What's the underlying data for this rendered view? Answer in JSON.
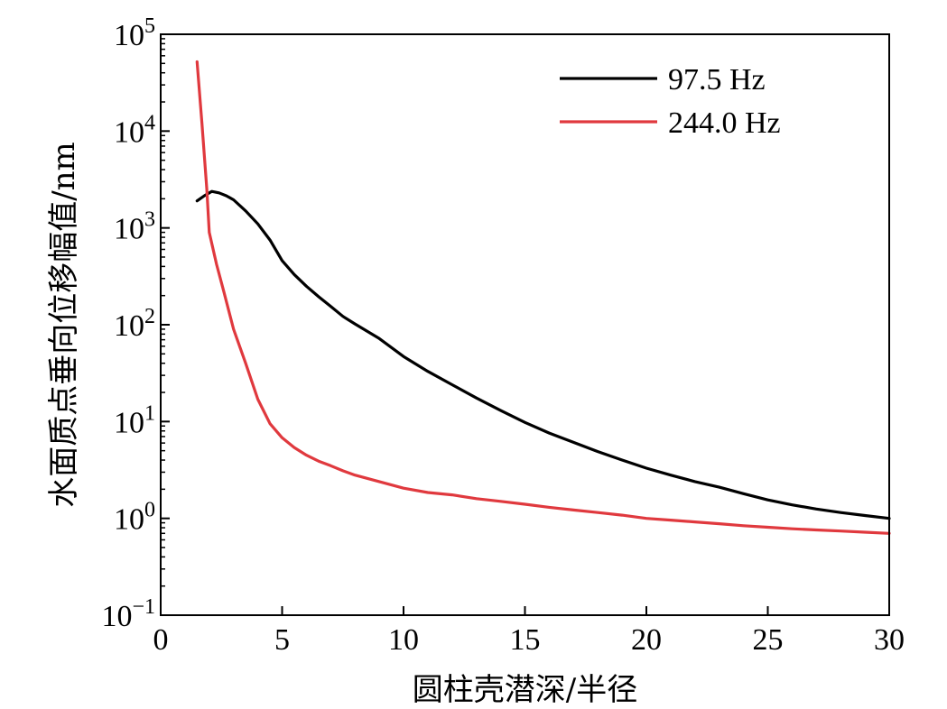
{
  "chart_data": {
    "type": "line",
    "title": "",
    "xlabel": "圆柱壳潜深/半径",
    "ylabel": "水面质点垂向位移幅值/nm",
    "xlim": [
      0,
      30
    ],
    "ylim": [
      0.1,
      100000
    ],
    "yscale": "log",
    "x_ticks": [
      0,
      5,
      10,
      15,
      20,
      25,
      30
    ],
    "x_tick_labels": [
      "0",
      "5",
      "10",
      "15",
      "20",
      "25",
      "30"
    ],
    "y_ticks": [
      {
        "base": "10",
        "exp": "5",
        "value": 100000
      },
      {
        "base": "10",
        "exp": "4",
        "value": 10000
      },
      {
        "base": "10",
        "exp": "3",
        "value": 1000
      },
      {
        "base": "10",
        "exp": "2",
        "value": 100
      },
      {
        "base": "10",
        "exp": "1",
        "value": 10
      },
      {
        "base": "10",
        "exp": "0",
        "value": 1
      },
      {
        "base": "10",
        "exp": "−1",
        "value": 0.1
      }
    ],
    "grid": false,
    "legend_position": "top-right",
    "series": [
      {
        "name": "97.5 Hz",
        "color": "#000000",
        "points": [
          [
            1.5,
            1900
          ],
          [
            1.8,
            2150
          ],
          [
            2.1,
            2380
          ],
          [
            2.4,
            2300
          ],
          [
            2.7,
            2150
          ],
          [
            3.0,
            1950
          ],
          [
            3.5,
            1500
          ],
          [
            4.0,
            1100
          ],
          [
            4.5,
            750
          ],
          [
            5.0,
            460
          ],
          [
            5.5,
            330
          ],
          [
            6.0,
            250
          ],
          [
            6.5,
            195
          ],
          [
            7.0,
            155
          ],
          [
            7.5,
            122
          ],
          [
            8.0,
            102
          ],
          [
            9.0,
            72
          ],
          [
            10.0,
            47
          ],
          [
            11.0,
            33
          ],
          [
            12.0,
            24
          ],
          [
            13.0,
            17.5
          ],
          [
            14.0,
            13
          ],
          [
            15.0,
            9.8
          ],
          [
            16.0,
            7.6
          ],
          [
            17.0,
            6.1
          ],
          [
            18.0,
            4.9
          ],
          [
            19.0,
            4.0
          ],
          [
            20.0,
            3.3
          ],
          [
            21.0,
            2.8
          ],
          [
            22.0,
            2.4
          ],
          [
            23.0,
            2.1
          ],
          [
            24.0,
            1.8
          ],
          [
            25.0,
            1.55
          ],
          [
            26.0,
            1.38
          ],
          [
            27.0,
            1.25
          ],
          [
            28.0,
            1.15
          ],
          [
            29.0,
            1.07
          ],
          [
            30.0,
            1.0
          ]
        ]
      },
      {
        "name": "244.0 Hz",
        "color": "#e0393e",
        "points": [
          [
            1.5,
            52000
          ],
          [
            1.7,
            12000
          ],
          [
            1.9,
            2500
          ],
          [
            2.0,
            900
          ],
          [
            2.3,
            420
          ],
          [
            2.6,
            220
          ],
          [
            3.0,
            90
          ],
          [
            3.5,
            40
          ],
          [
            4.0,
            17
          ],
          [
            4.5,
            9.5
          ],
          [
            5.0,
            6.8
          ],
          [
            5.5,
            5.4
          ],
          [
            6.0,
            4.5
          ],
          [
            6.5,
            3.9
          ],
          [
            7.0,
            3.5
          ],
          [
            7.5,
            3.1
          ],
          [
            8.0,
            2.8
          ],
          [
            9.0,
            2.4
          ],
          [
            10.0,
            2.05
          ],
          [
            11.0,
            1.85
          ],
          [
            12.0,
            1.75
          ],
          [
            13.0,
            1.6
          ],
          [
            14.0,
            1.5
          ],
          [
            15.0,
            1.4
          ],
          [
            16.0,
            1.3
          ],
          [
            17.0,
            1.22
          ],
          [
            18.0,
            1.15
          ],
          [
            19.0,
            1.08
          ],
          [
            20.0,
            1.0
          ],
          [
            21.0,
            0.96
          ],
          [
            22.0,
            0.92
          ],
          [
            23.0,
            0.88
          ],
          [
            24.0,
            0.84
          ],
          [
            25.0,
            0.81
          ],
          [
            26.0,
            0.78
          ],
          [
            27.0,
            0.76
          ],
          [
            28.0,
            0.74
          ],
          [
            29.0,
            0.72
          ],
          [
            30.0,
            0.7
          ]
        ]
      }
    ]
  }
}
